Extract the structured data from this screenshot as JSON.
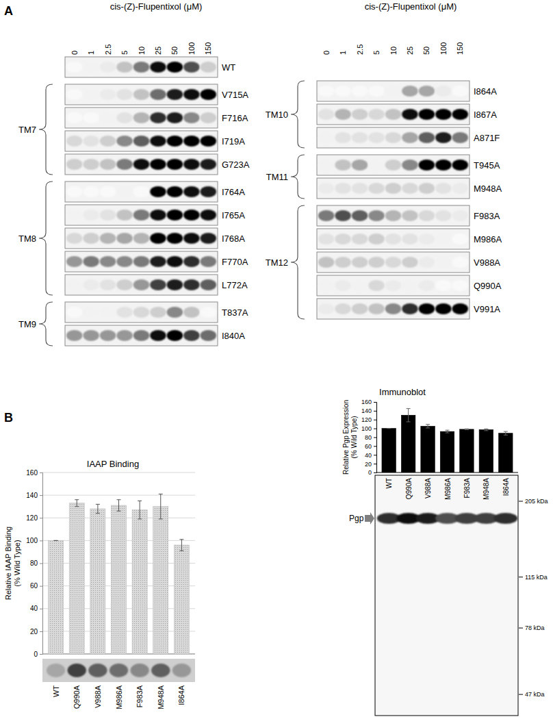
{
  "chart_data": [
    {
      "type": "gel",
      "panel": "A",
      "title": "cis-(Z)-Flupentixol (μM)",
      "categories": [
        0,
        1,
        2.5,
        5,
        10,
        25,
        50,
        100,
        150
      ],
      "clim": [
        0,
        1
      ],
      "columns": [
        {
          "blocks": [
            {
              "group": null,
              "strips": [
                {
                  "name": "WT",
                  "values": [
                    0.05,
                    0.1,
                    0.15,
                    0.35,
                    0.6,
                    0.95,
                    1.0,
                    0.75,
                    0.3
                  ]
                }
              ]
            },
            {
              "group": "TM7",
              "strips": [
                {
                  "name": "V715A",
                  "values": [
                    0.05,
                    0.1,
                    0.15,
                    0.2,
                    0.35,
                    0.65,
                    0.9,
                    0.95,
                    1.0
                  ]
                },
                {
                  "name": "F716A",
                  "values": [
                    0.05,
                    0.05,
                    0.1,
                    0.2,
                    0.4,
                    0.85,
                    0.9,
                    0.55,
                    0.3
                  ]
                },
                {
                  "name": "I719A",
                  "values": [
                    0.25,
                    0.2,
                    0.3,
                    0.55,
                    0.7,
                    0.95,
                    1.0,
                    1.0,
                    1.0
                  ]
                },
                {
                  "name": "G723A",
                  "values": [
                    0.3,
                    0.3,
                    0.35,
                    0.6,
                    0.95,
                    1.0,
                    1.0,
                    0.95,
                    0.9
                  ]
                }
              ]
            },
            {
              "group": "TM8",
              "strips": [
                {
                  "name": "I764A",
                  "values": [
                    0.05,
                    0.05,
                    0.05,
                    0.1,
                    0.05,
                    1.0,
                    1.0,
                    0.95,
                    0.9
                  ]
                },
                {
                  "name": "I765A",
                  "values": [
                    0.1,
                    0.15,
                    0.2,
                    0.35,
                    0.6,
                    0.95,
                    1.0,
                    1.0,
                    0.95
                  ]
                },
                {
                  "name": "I768A",
                  "values": [
                    0.25,
                    0.3,
                    0.4,
                    0.45,
                    0.4,
                    1.0,
                    1.0,
                    0.95,
                    0.9
                  ]
                },
                {
                  "name": "F770A",
                  "values": [
                    0.5,
                    0.6,
                    0.55,
                    0.55,
                    0.6,
                    0.9,
                    0.95,
                    0.85,
                    0.6
                  ]
                },
                {
                  "name": "L772A",
                  "values": [
                    0.1,
                    0.15,
                    0.2,
                    0.3,
                    0.5,
                    0.8,
                    0.9,
                    0.85,
                    0.7
                  ]
                }
              ]
            },
            {
              "group": "TM9",
              "strips": [
                {
                  "name": "T837A",
                  "values": [
                    0.05,
                    0.1,
                    0.1,
                    0.2,
                    0.25,
                    0.3,
                    0.55,
                    0.35,
                    0.05
                  ]
                },
                {
                  "name": "I840A",
                  "values": [
                    0.5,
                    0.5,
                    0.5,
                    0.5,
                    0.6,
                    0.95,
                    1.0,
                    0.8,
                    0.65
                  ]
                }
              ]
            }
          ]
        },
        {
          "blocks": [
            {
              "group": "TM10",
              "strips": [
                {
                  "name": "I864A",
                  "values": [
                    0.05,
                    0.05,
                    0.05,
                    0.05,
                    0.1,
                    0.45,
                    0.45,
                    0.15,
                    0.05
                  ]
                },
                {
                  "name": "I867A",
                  "values": [
                    0.2,
                    0.4,
                    0.3,
                    0.25,
                    0.35,
                    0.95,
                    1.0,
                    1.0,
                    1.0
                  ]
                },
                {
                  "name": "A871F",
                  "values": [
                    0.1,
                    0.2,
                    0.2,
                    0.2,
                    0.25,
                    0.45,
                    0.7,
                    0.9,
                    0.6
                  ]
                }
              ]
            },
            {
              "group": "TM11",
              "strips": [
                {
                  "name": "T945A",
                  "values": [
                    0.1,
                    0.35,
                    0.45,
                    0.1,
                    0.3,
                    0.55,
                    1.0,
                    1.0,
                    1.0
                  ]
                },
                {
                  "name": "M948A",
                  "values": [
                    0.15,
                    0.2,
                    0.2,
                    0.25,
                    0.3,
                    0.25,
                    0.3,
                    0.2,
                    0.15
                  ]
                }
              ]
            },
            {
              "group": "TM12",
              "strips": [
                {
                  "name": "F983A",
                  "values": [
                    0.6,
                    0.75,
                    0.7,
                    0.55,
                    0.4,
                    0.35,
                    0.25,
                    0.2,
                    0.15
                  ]
                },
                {
                  "name": "M986A",
                  "values": [
                    0.2,
                    0.25,
                    0.25,
                    0.3,
                    0.2,
                    0.2,
                    0.15,
                    0.1,
                    0.05
                  ]
                },
                {
                  "name": "V988A",
                  "values": [
                    0.35,
                    0.3,
                    0.3,
                    0.3,
                    0.25,
                    0.3,
                    0.15,
                    0.1,
                    0.05
                  ]
                },
                {
                  "name": "Q990A",
                  "values": [
                    0.1,
                    0.15,
                    0.1,
                    0.25,
                    0.15,
                    0.1,
                    0.15,
                    0.05,
                    0.05
                  ]
                },
                {
                  "name": "V991A",
                  "values": [
                    0.15,
                    0.25,
                    0.3,
                    0.35,
                    0.55,
                    0.85,
                    1.0,
                    1.0,
                    1.0
                  ]
                }
              ]
            }
          ]
        }
      ]
    },
    {
      "type": "bar",
      "panel": "B",
      "title": "IAAP Binding",
      "ylabel": [
        "Relative IAAP Binding",
        "(% Wild Type)"
      ],
      "categories": [
        "WT",
        "Q990A",
        "V988A",
        "M986A",
        "F983A",
        "M948A",
        "I864A"
      ],
      "values": [
        100,
        133,
        128,
        131,
        127,
        130,
        96
      ],
      "errors": [
        0,
        3,
        4,
        5,
        8,
        11,
        5
      ],
      "color": "#d9d9d9",
      "ylim": [
        0,
        160
      ],
      "yticks": [
        0,
        20,
        40,
        60,
        80,
        100,
        120,
        140,
        160
      ],
      "grid": true,
      "blot": {
        "values": [
          0.45,
          0.8,
          0.7,
          0.65,
          0.55,
          0.7,
          0.5
        ],
        "clim": [
          0,
          1
        ]
      }
    },
    {
      "type": "bar",
      "title": "Immunoblot",
      "ylabel": [
        "Relative Pgp Expression",
        "(% Wild Type)"
      ],
      "categories": [
        "WT",
        "Q990A",
        "V988A",
        "M986A",
        "F983A",
        "M948A",
        "I864A"
      ],
      "values": [
        100,
        130,
        105,
        93,
        98,
        97,
        89
      ],
      "errors": [
        0,
        15,
        4,
        3,
        1,
        2,
        4
      ],
      "color": "#000000",
      "ylim": [
        0,
        160
      ],
      "yticks": [
        0,
        20,
        40,
        60,
        80,
        100,
        120,
        140,
        160
      ],
      "grid": false,
      "blot": {
        "label": "Pgp",
        "values": [
          0.85,
          0.95,
          0.9,
          0.75,
          0.8,
          0.8,
          0.85
        ],
        "clim": [
          0,
          1
        ],
        "log": "y",
        "ylim": [
          250,
          40
        ],
        "yticks": [
          {
            "value": 205,
            "label": "205 kDa"
          },
          {
            "value": 115,
            "label": "115 kDa"
          },
          {
            "value": 78,
            "label": "78 kDa"
          },
          {
            "value": 47,
            "label": "47 kDa"
          }
        ]
      }
    }
  ]
}
